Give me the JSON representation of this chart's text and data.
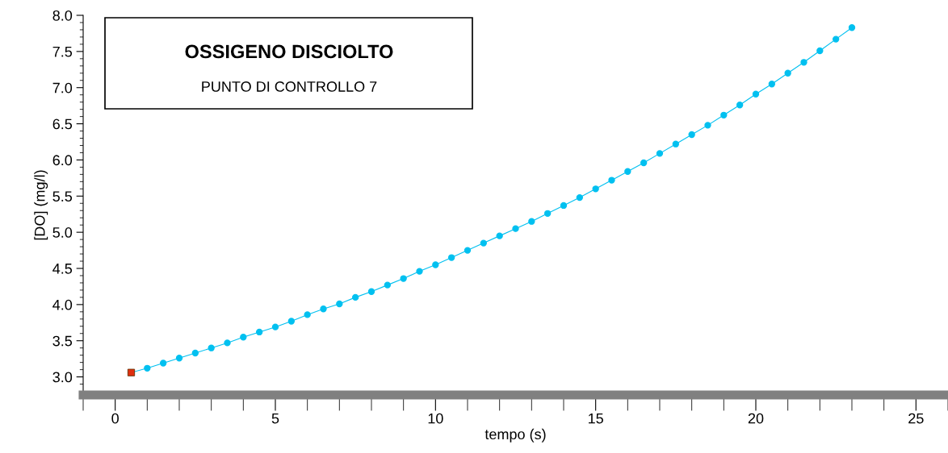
{
  "chart_data": {
    "type": "line",
    "title": "OSSIGENO DISCIOLTO",
    "subtitle": "PUNTO DI CONTROLLO 7",
    "xlabel": "tempo (s)",
    "ylabel": "[DO] (mg/l)",
    "series": [
      {
        "color": "#00c0f0",
        "marker": "circle",
        "line_style": "solid",
        "x": [
          0.5,
          1,
          1.5,
          2,
          2.5,
          3,
          3.5,
          4,
          4.5,
          5,
          5.5,
          6,
          6.5,
          7,
          7.5,
          8,
          8.5,
          9,
          9.5,
          10,
          10.5,
          11,
          11.5,
          12,
          12.5,
          13,
          13.5,
          14,
          14.5,
          15,
          15.5,
          16,
          16.5,
          17,
          17.5,
          18,
          18.5,
          19,
          19.5,
          20,
          20.5,
          21,
          21.5,
          22,
          22.5,
          23
        ],
        "values": [
          3.06,
          3.12,
          3.19,
          3.26,
          3.33,
          3.4,
          3.47,
          3.55,
          3.62,
          3.69,
          3.77,
          3.86,
          3.94,
          4.01,
          4.1,
          4.18,
          4.27,
          4.36,
          4.46,
          4.55,
          4.65,
          4.75,
          4.85,
          4.95,
          5.05,
          5.15,
          5.26,
          5.37,
          5.48,
          5.6,
          5.72,
          5.84,
          5.96,
          6.09,
          6.22,
          6.35,
          6.48,
          6.62,
          6.76,
          6.91,
          7.05,
          7.2,
          7.35,
          7.51,
          7.67,
          7.83
        ]
      },
      {
        "type": "scatter",
        "color": "#e03010",
        "marker": "square",
        "x": [
          0.5
        ],
        "values": [
          3.06
        ]
      }
    ],
    "xlim": [
      -1,
      26
    ],
    "xticks": [
      0,
      5,
      10,
      15,
      20,
      25
    ],
    "ylim": [
      2.75,
      8.0
    ],
    "yticks": [
      {
        "value": 3.0,
        "label": "3.0"
      },
      {
        "value": 3.5,
        "label": "3.5"
      },
      {
        "value": 4.0,
        "label": "4.0"
      },
      {
        "value": 4.5,
        "label": "4.5"
      },
      {
        "value": 5.0,
        "label": "5.0"
      },
      {
        "value": 5.5,
        "label": "5.5"
      },
      {
        "value": 6.0,
        "label": "6.0"
      },
      {
        "value": 6.5,
        "label": "6.5"
      },
      {
        "value": 7.0,
        "label": "7.0"
      },
      {
        "value": 7.5,
        "label": "7.5"
      },
      {
        "value": 8.0,
        "label": "8.0"
      }
    ],
    "grid": false,
    "legend": false
  }
}
